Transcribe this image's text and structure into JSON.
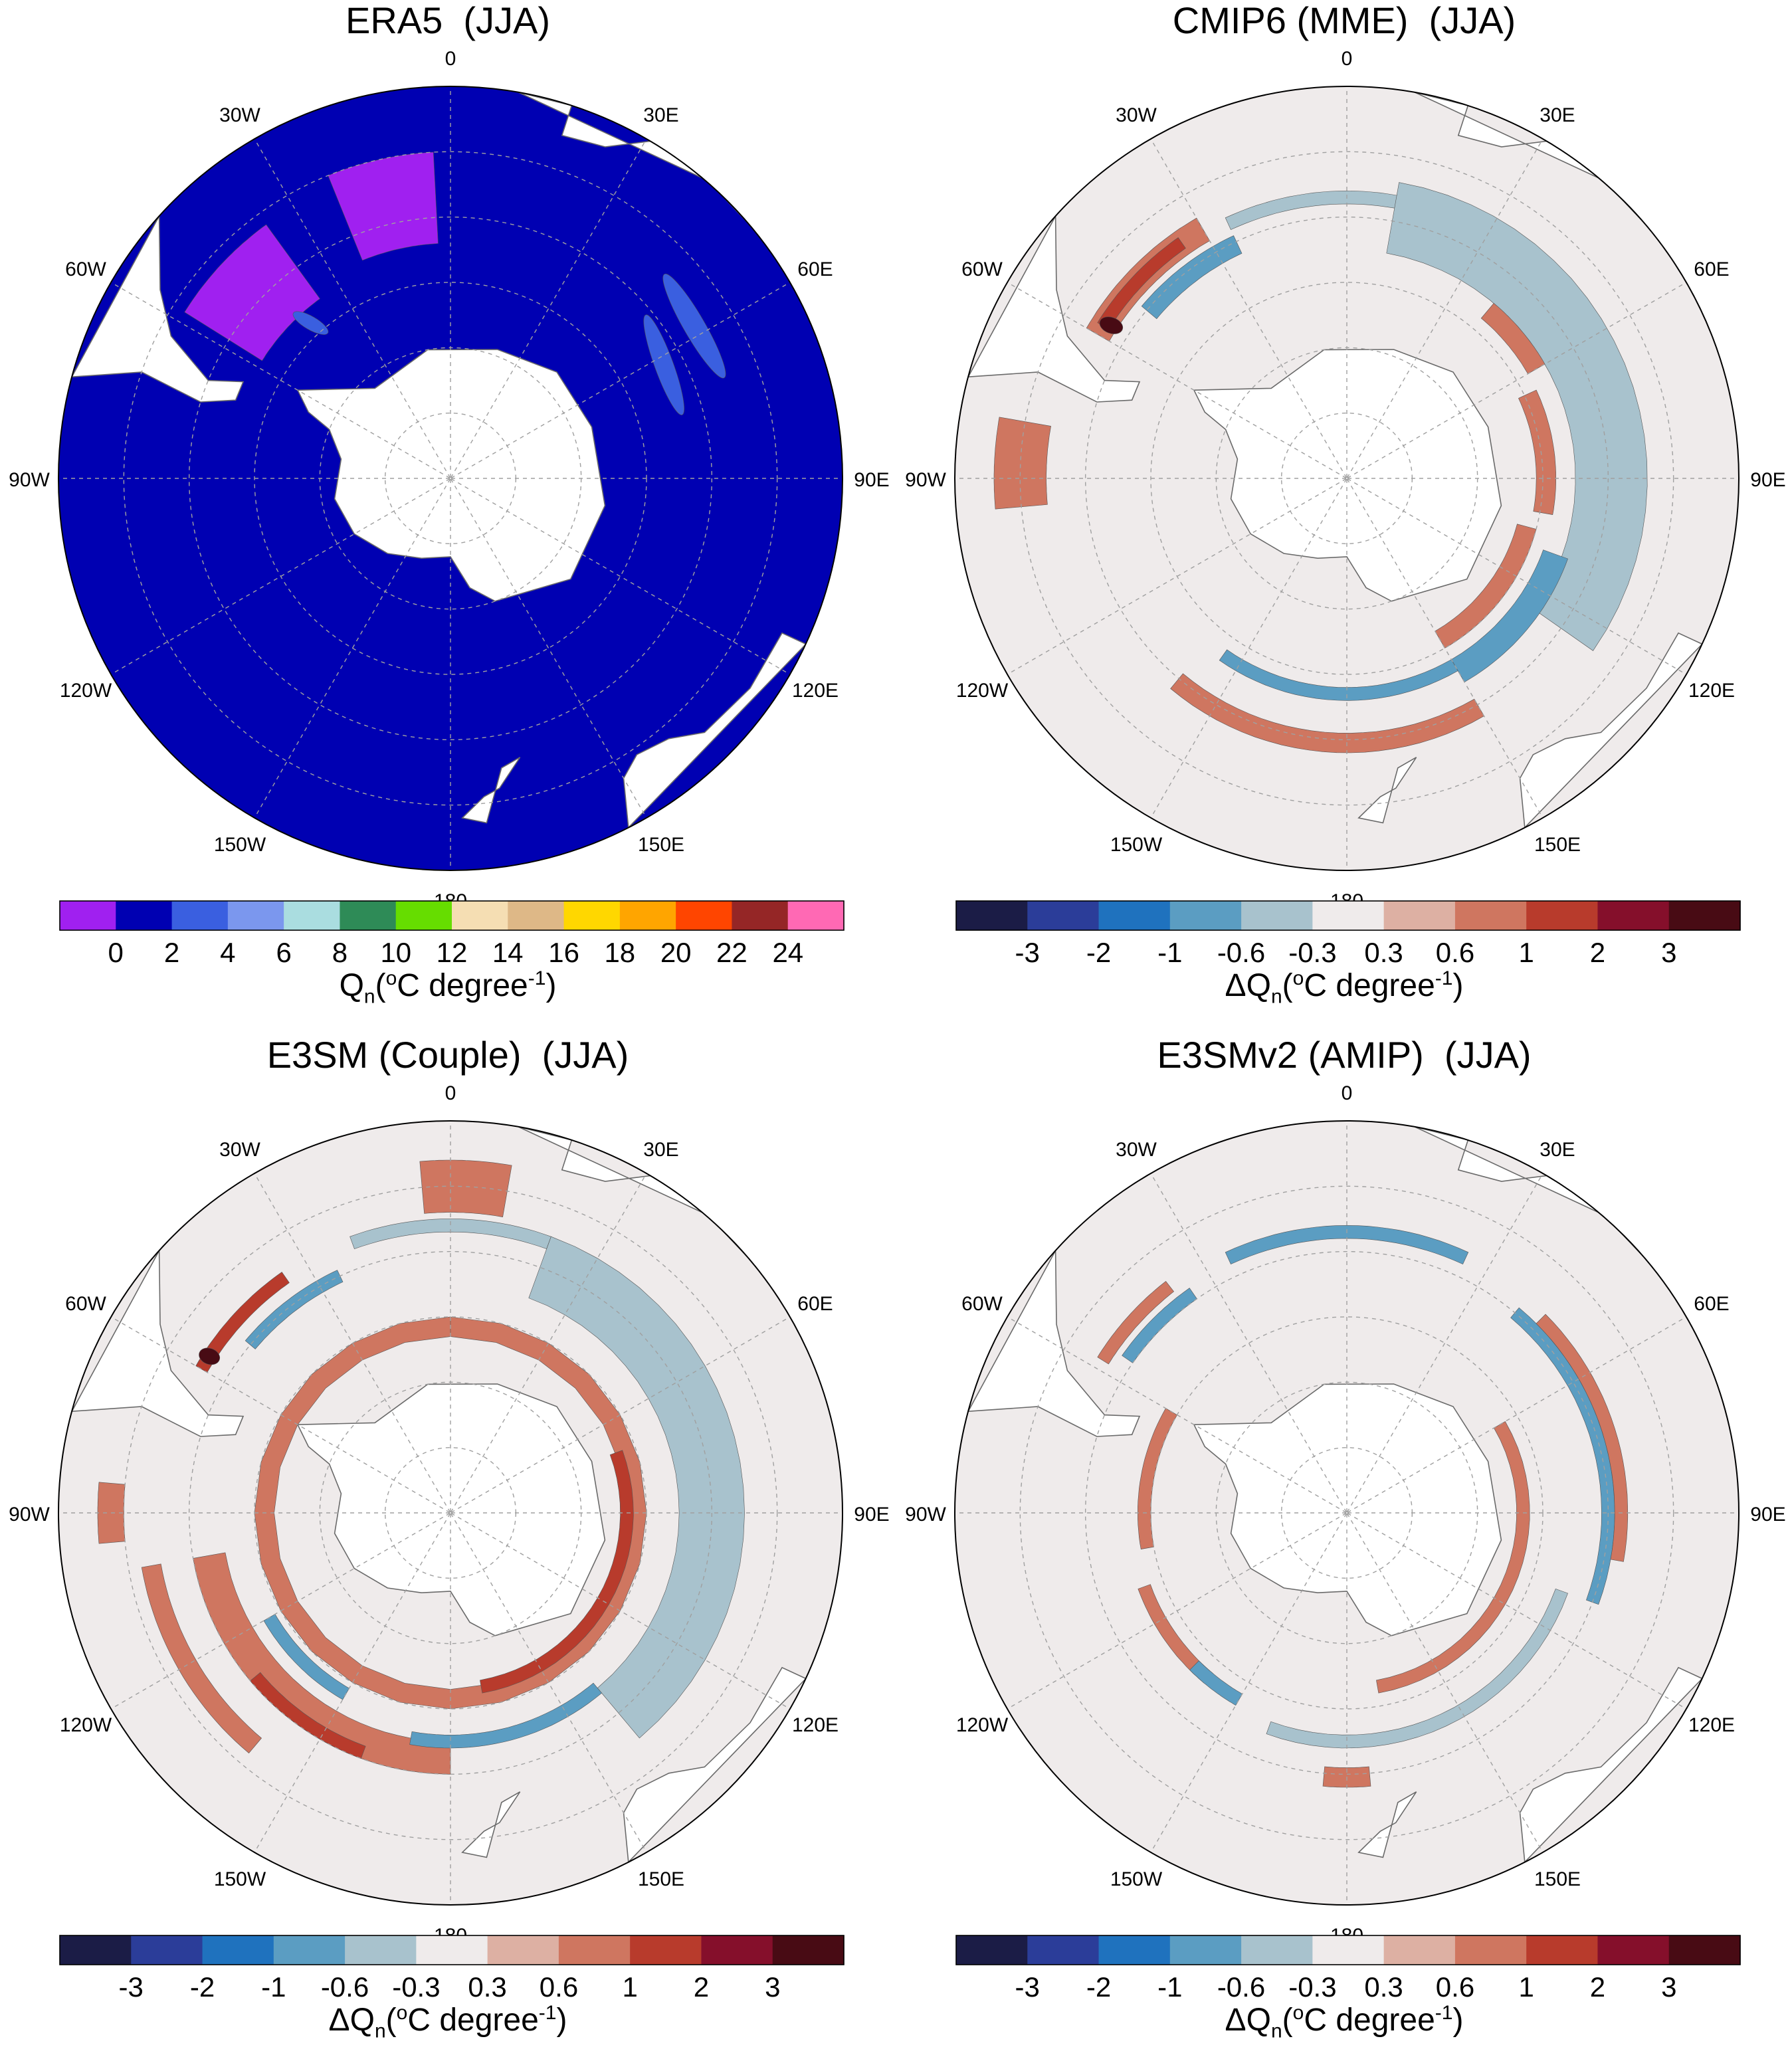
{
  "figure": {
    "background": "#ffffff"
  },
  "lon_labels": [
    "0",
    "30E",
    "60E",
    "90E",
    "120E",
    "150E",
    "180",
    "150W",
    "120W",
    "90W",
    "60W",
    "30W"
  ],
  "colors": {
    "land": "#ffffff",
    "ocean_neutral": "#efebeb",
    "coast": "#6a6a6a",
    "grid": "#a0a0a0"
  },
  "chart_data": [
    {
      "id": "era5",
      "type": "heatmap",
      "title": "ERA5  (JJA)",
      "projection": "south polar stereographic",
      "base_color": "#0000b2",
      "colorbar": {
        "label_main": "Q",
        "label_sub": "n",
        "label_tail": "(",
        "label_sup": "o",
        "label_unit": "C degree",
        "label_exp": "-1",
        "label_close": ")",
        "ticks": [
          "0",
          "2",
          "4",
          "6",
          "8",
          "10",
          "12",
          "14",
          "16",
          "18",
          "20",
          "22",
          "24"
        ],
        "colors": [
          "#a020f0",
          "#0000b2",
          "#3a5fe0",
          "#7b97ee",
          "#aadde0",
          "#2e8b57",
          "#66dd00",
          "#f5deb3",
          "#deb887",
          "#ffd700",
          "#ffa500",
          "#ff4500",
          "#952626",
          "#ff69b4"
        ]
      },
      "features": [
        {
          "kind": "band",
          "value": 0,
          "color": "#a020f0",
          "lon": [
            -22,
            -3
          ],
          "lat": [
            -40,
            -54
          ]
        },
        {
          "kind": "band",
          "value": 0,
          "color": "#a020f0",
          "lon": [
            -58,
            -36
          ],
          "lat": [
            -42,
            -56
          ]
        },
        {
          "kind": "blob",
          "value": 3,
          "color": "#3a5fe0",
          "lon": 58,
          "lat": -46,
          "len": 90,
          "wid": 16,
          "ang": 60
        },
        {
          "kind": "blob",
          "value": 3,
          "color": "#3a5fe0",
          "lon": 62,
          "lat": -53,
          "len": 80,
          "wid": 14,
          "ang": 70
        },
        {
          "kind": "blob",
          "value": 3,
          "color": "#3a5fe0",
          "lon": -42,
          "lat": -58,
          "len": 30,
          "wid": 10,
          "ang": 30
        }
      ]
    },
    {
      "id": "cmip6",
      "type": "heatmap",
      "title": "CMIP6 (MME)  (JJA)",
      "projection": "south polar stereographic",
      "colorbar": {
        "label_main": "ΔQ",
        "label_sub": "n",
        "label_tail": "(",
        "label_sup": "o",
        "label_unit": "C degree",
        "label_exp": "-1",
        "label_close": ")",
        "ticks": [
          "-3",
          "-2",
          "-1",
          "-0.6",
          "-0.3",
          "0.3",
          "0.6",
          "1",
          "2",
          "3"
        ],
        "colors": [
          "#1b1c46",
          "#2b3d99",
          "#1f72be",
          "#5b9dc2",
          "#a8c2cd",
          "#efebeb",
          "#ddb0a3",
          "#cf7660",
          "#b83b2c",
          "#850f2b",
          "#480b14"
        ]
      },
      "features": [
        {
          "kind": "band",
          "value": 0.6,
          "color": "#cf7660",
          "lon": [
            -60,
            -30
          ],
          "lat": [
            -44,
            -48
          ]
        },
        {
          "kind": "band",
          "value": 1.5,
          "color": "#b83b2c",
          "lon": [
            -58,
            -35
          ],
          "lat": [
            -45,
            -47
          ]
        },
        {
          "kind": "band",
          "value": -0.6,
          "color": "#5b9dc2",
          "lon": [
            -50,
            -25
          ],
          "lat": [
            -49,
            -52
          ]
        },
        {
          "kind": "band",
          "value": -0.3,
          "color": "#a8c2cd",
          "lon": [
            -25,
            15
          ],
          "lat": [
            -46,
            -48
          ]
        },
        {
          "kind": "band",
          "value": -1.5,
          "color": "#1f72be",
          "lon": [
            20,
            115
          ],
          "lat": [
            -47,
            -52
          ]
        },
        {
          "kind": "band",
          "value": -0.3,
          "color": "#a8c2cd",
          "lon": [
            10,
            125
          ],
          "lat": [
            -44,
            -55
          ]
        },
        {
          "kind": "band",
          "value": -0.6,
          "color": "#5b9dc2",
          "lon": [
            110,
            150
          ],
          "lat": [
            -54,
            -58
          ]
        },
        {
          "kind": "band",
          "value": -0.6,
          "color": "#5b9dc2",
          "lon": [
            150,
            215
          ],
          "lat": [
            -56,
            -58
          ]
        },
        {
          "kind": "band",
          "value": 0.6,
          "color": "#cf7660",
          "lon": [
            105,
            150
          ],
          "lat": [
            -60,
            -63
          ]
        },
        {
          "kind": "band",
          "value": 0.6,
          "color": "#cf7660",
          "lon": [
            150,
            220
          ],
          "lat": [
            -48,
            -51
          ]
        },
        {
          "kind": "band",
          "value": 0.6,
          "color": "#cf7660",
          "lon": [
            40,
            60
          ],
          "lat": [
            -55,
            -58
          ]
        },
        {
          "kind": "band",
          "value": 0.6,
          "color": "#cf7660",
          "lon": [
            -95,
            -80
          ],
          "lat": [
            -36,
            -44
          ]
        },
        {
          "kind": "band",
          "value": 0.6,
          "color": "#cf7660",
          "lon": [
            65,
            100
          ],
          "lat": [
            -58,
            -61
          ]
        },
        {
          "kind": "blob",
          "value": 3,
          "color": "#480b14",
          "lon": -57,
          "lat": -47,
          "len": 18,
          "wid": 12,
          "ang": 20
        }
      ]
    },
    {
      "id": "e3sm_couple",
      "type": "heatmap",
      "title": "E3SM (Couple)  (JJA)",
      "projection": "south polar stereographic",
      "colorbar": {
        "label_main": "ΔQ",
        "label_sub": "n",
        "label_tail": "(",
        "label_sup": "o",
        "label_unit": "C degree",
        "label_exp": "-1",
        "label_close": ")",
        "ticks": [
          "-3",
          "-2",
          "-1",
          "-0.6",
          "-0.3",
          "0.3",
          "0.6",
          "1",
          "2",
          "3"
        ],
        "colors": [
          "#1b1c46",
          "#2b3d99",
          "#1f72be",
          "#5b9dc2",
          "#a8c2cd",
          "#efebeb",
          "#ddb0a3",
          "#cf7660",
          "#b83b2c",
          "#850f2b",
          "#480b14"
        ]
      },
      "features": [
        {
          "kind": "band",
          "value": 0.6,
          "color": "#cf7660",
          "lon": [
            -5,
            10
          ],
          "lat": [
            -36,
            -44
          ]
        },
        {
          "kind": "band",
          "value": 1.5,
          "color": "#b83b2c",
          "lon": [
            -60,
            -35
          ],
          "lat": [
            -45,
            -47
          ]
        },
        {
          "kind": "band",
          "value": -0.6,
          "color": "#5b9dc2",
          "lon": [
            -50,
            -25
          ],
          "lat": [
            -49,
            -51
          ]
        },
        {
          "kind": "band",
          "value": -0.3,
          "color": "#a8c2cd",
          "lon": [
            -20,
            20
          ],
          "lat": [
            -45,
            -47
          ]
        },
        {
          "kind": "band",
          "value": -1.5,
          "color": "#1f72be",
          "lon": [
            30,
            130
          ],
          "lat": [
            -48,
            -52
          ]
        },
        {
          "kind": "band",
          "value": -0.3,
          "color": "#a8c2cd",
          "lon": [
            20,
            140
          ],
          "lat": [
            -45,
            -55
          ]
        },
        {
          "kind": "band",
          "value": 0.6,
          "color": "#cf7660",
          "lon": [
            0,
            360
          ],
          "lat": [
            -60,
            -63
          ]
        },
        {
          "kind": "band",
          "value": 1.5,
          "color": "#b83b2c",
          "lon": [
            70,
            170
          ],
          "lat": [
            -62,
            -64
          ]
        },
        {
          "kind": "band",
          "value": 0.6,
          "color": "#cf7660",
          "lon": [
            -180,
            -100
          ],
          "lat": [
            -50,
            -55
          ]
        },
        {
          "kind": "band",
          "value": 1.5,
          "color": "#b83b2c",
          "lon": [
            -160,
            -130
          ],
          "lat": [
            -50,
            -52
          ]
        },
        {
          "kind": "band",
          "value": -0.6,
          "color": "#5b9dc2",
          "lon": [
            -150,
            -120
          ],
          "lat": [
            -57,
            -59
          ]
        },
        {
          "kind": "band",
          "value": -0.6,
          "color": "#5b9dc2",
          "lon": [
            140,
            190
          ],
          "lat": [
            -54,
            -56
          ]
        },
        {
          "kind": "band",
          "value": 0.6,
          "color": "#cf7660",
          "lon": [
            -140,
            -100
          ],
          "lat": [
            -42,
            -45
          ]
        },
        {
          "kind": "band",
          "value": 0.6,
          "color": "#cf7660",
          "lon": [
            -95,
            -85
          ],
          "lat": [
            -36,
            -40
          ]
        },
        {
          "kind": "blob",
          "value": 3,
          "color": "#480b14",
          "lon": -57,
          "lat": -46,
          "len": 16,
          "wid": 12,
          "ang": 20
        }
      ]
    },
    {
      "id": "e3smv2_amip",
      "type": "heatmap",
      "title": "E3SMv2 (AMIP)  (JJA)",
      "projection": "south polar stereographic",
      "colorbar": {
        "label_main": "ΔQ",
        "label_sub": "n",
        "label_tail": "(",
        "label_sup": "o",
        "label_unit": "C degree",
        "label_exp": "-1",
        "label_close": ")",
        "ticks": [
          "-3",
          "-2",
          "-1",
          "-0.6",
          "-0.3",
          "0.3",
          "0.6",
          "1",
          "2",
          "3"
        ],
        "colors": [
          "#1b1c46",
          "#2b3d99",
          "#1f72be",
          "#5b9dc2",
          "#a8c2cd",
          "#efebeb",
          "#ddb0a3",
          "#cf7660",
          "#b83b2c",
          "#850f2b",
          "#480b14"
        ]
      },
      "features": [
        {
          "kind": "band",
          "value": 0.6,
          "color": "#cf7660",
          "lon": [
            -58,
            -38
          ],
          "lat": [
            -45,
            -47
          ]
        },
        {
          "kind": "band",
          "value": -0.6,
          "color": "#5b9dc2",
          "lon": [
            -55,
            -35
          ],
          "lat": [
            -48,
            -50
          ]
        },
        {
          "kind": "band",
          "value": -0.6,
          "color": "#5b9dc2",
          "lon": [
            -25,
            25
          ],
          "lat": [
            -46,
            -48
          ]
        },
        {
          "kind": "band",
          "value": -0.6,
          "color": "#5b9dc2",
          "lon": [
            40,
            110
          ],
          "lat": [
            -49,
            -51
          ]
        },
        {
          "kind": "band",
          "value": 0.6,
          "color": "#cf7660",
          "lon": [
            45,
            100
          ],
          "lat": [
            -47,
            -49
          ]
        },
        {
          "kind": "band",
          "value": -0.3,
          "color": "#a8c2cd",
          "lon": [
            110,
            200
          ],
          "lat": [
            -54,
            -56
          ]
        },
        {
          "kind": "band",
          "value": 0.6,
          "color": "#cf7660",
          "lon": [
            60,
            170
          ],
          "lat": [
            -62,
            -64
          ]
        },
        {
          "kind": "band",
          "value": 0.6,
          "color": "#cf7660",
          "lon": [
            -140,
            -110
          ],
          "lat": [
            -56,
            -58
          ]
        },
        {
          "kind": "band",
          "value": -0.6,
          "color": "#5b9dc2",
          "lon": [
            -150,
            -135
          ],
          "lat": [
            -56,
            -58
          ]
        },
        {
          "kind": "band",
          "value": 0.6,
          "color": "#cf7660",
          "lon": [
            175,
            185
          ],
          "lat": [
            -48,
            -51
          ]
        },
        {
          "kind": "band",
          "value": 0.6,
          "color": "#cf7660",
          "lon": [
            -100,
            -60
          ],
          "lat": [
            -58,
            -60
          ]
        }
      ]
    }
  ]
}
